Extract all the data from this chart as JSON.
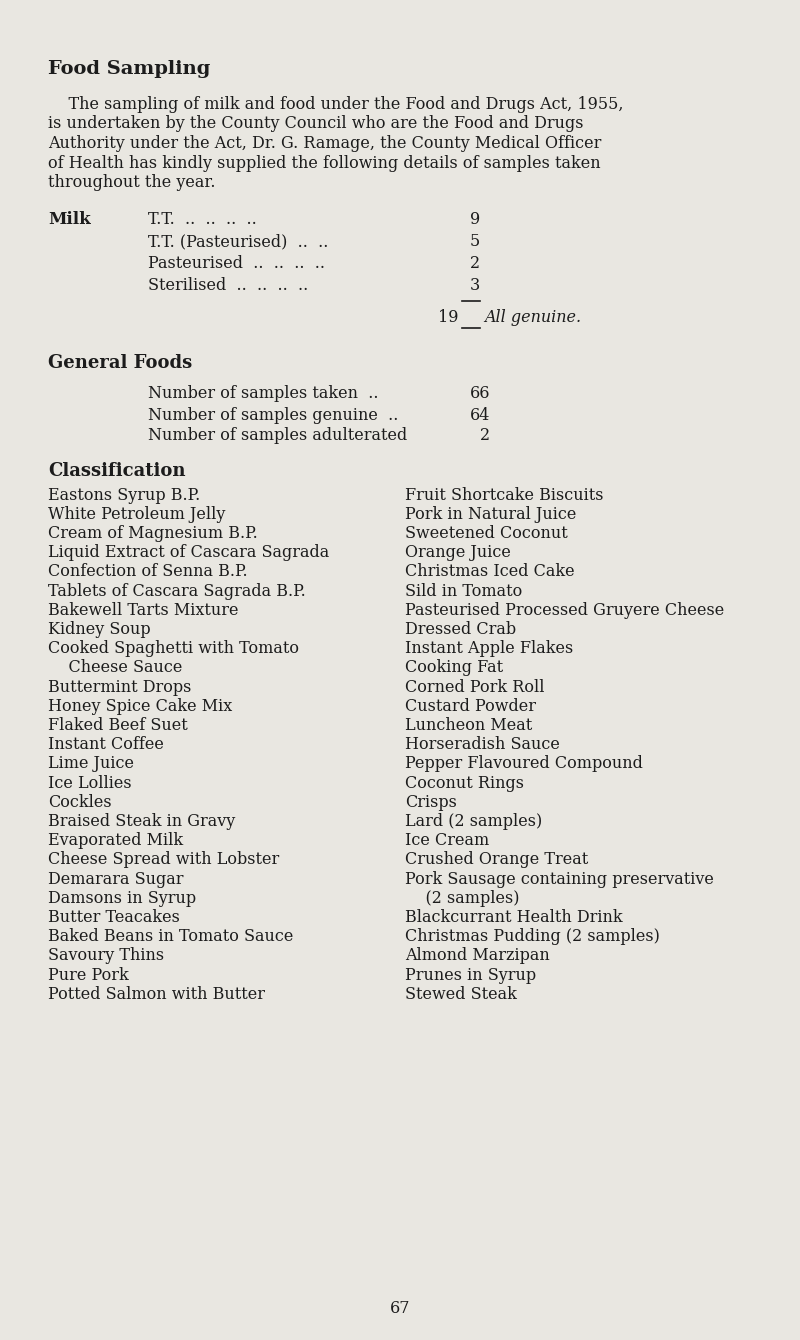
{
  "bg_color": "#e9e7e1",
  "title": "Food Sampling",
  "intro_lines": [
    "    The sampling of milk and food under the Food and Drugs Act, 1955,",
    "is undertaken by the County Council who are the Food and Drugs",
    "Authority under the Act, Dr. G. Ramage, the County Medical Officer",
    "of Health has kindly supplied the following details of samples taken",
    "throughout the year."
  ],
  "milk_label": "Milk",
  "milk_items": [
    [
      "T.T.  ..  ..  ..  ..",
      "9"
    ],
    [
      "T.T. (Pasteurised)  ..  ..",
      "5"
    ],
    [
      "Pasteurised  ..  ..  ..  ..",
      "2"
    ],
    [
      "Sterilised  ..  ..  ..  ..",
      "3"
    ]
  ],
  "milk_total": "19",
  "milk_total_note": "All genuine.",
  "general_foods_label": "General Foods",
  "general_stats": [
    [
      "Number of samples taken  ..",
      "66"
    ],
    [
      "Number of samples genuine  ..",
      "64"
    ],
    [
      "Number of samples adulterated",
      "2"
    ]
  ],
  "classification_label": "Classification",
  "left_col": [
    "Eastons Syrup B.P.",
    "White Petroleum Jelly",
    "Cream of Magnesium B.P.",
    "Liquid Extract of Cascara Sagrada",
    "Confection of Senna B.P.",
    "Tablets of Cascara Sagrada B.P.",
    "Bakewell Tarts Mixture",
    "Kidney Soup",
    "Cooked Spaghetti with Tomato",
    "    Cheese Sauce",
    "Buttermint Drops",
    "Honey Spice Cake Mix",
    "Flaked Beef Suet",
    "Instant Coffee",
    "Lime Juice",
    "Ice Lollies",
    "Cockles",
    "Braised Steak in Gravy",
    "Evaporated Milk",
    "Cheese Spread with Lobster",
    "Demarara Sugar",
    "Damsons in Syrup",
    "Butter Teacakes",
    "Baked Beans in Tomato Sauce",
    "Savoury Thins",
    "Pure Pork",
    "Potted Salmon with Butter"
  ],
  "right_col": [
    "Fruit Shortcake Biscuits",
    "Pork in Natural Juice",
    "Sweetened Coconut",
    "Orange Juice",
    "Christmas Iced Cake",
    "Sild in Tomato",
    "Pasteurised Processed Gruyere Cheese",
    "Dressed Crab",
    "Instant Apple Flakes",
    "Cooking Fat",
    "Corned Pork Roll",
    "Custard Powder",
    "Luncheon Meat",
    "Horseradish Sauce",
    "Pepper Flavoured Compound",
    "Coconut Rings",
    "Crisps",
    "Lard (2 samples)",
    "Ice Cream",
    "Crushed Orange Treat",
    "Pork Sausage containing preservative",
    "    (2 samples)",
    "Blackcurrant Health Drink",
    "Christmas Pudding (2 samples)",
    "Almond Marzipan",
    "Prunes in Syrup",
    "Stewed Steak"
  ],
  "page_number": "67",
  "text_color": "#1c1c1c",
  "fs_body": 11.5,
  "fs_title": 14.0,
  "fs_heading": 13.0,
  "fs_page": 11.5
}
